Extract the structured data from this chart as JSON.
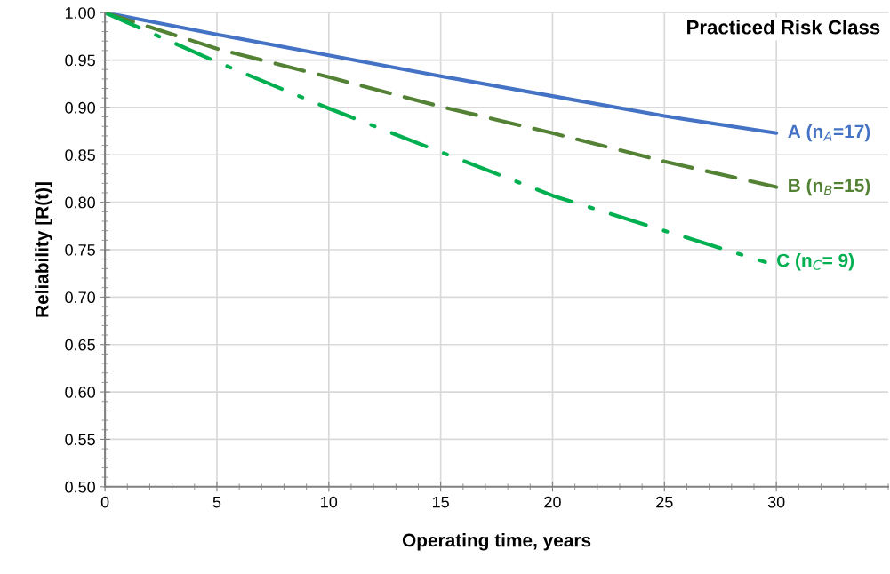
{
  "chart_data": {
    "type": "line",
    "xlabel": "Operating time, years",
    "ylabel": "Reliability [R(t)]",
    "annotations": [
      "Practiced Risk Class"
    ],
    "xlim": [
      0,
      35
    ],
    "xticks": [
      0,
      5,
      10,
      15,
      20,
      25,
      30
    ],
    "ylim": [
      0.5,
      1.0
    ],
    "yticks": [
      {
        "value": 0.5,
        "label": "0.50"
      },
      {
        "value": 0.55,
        "label": "0.55"
      },
      {
        "value": 0.6,
        "label": "0.60"
      },
      {
        "value": 0.65,
        "label": "0.65"
      },
      {
        "value": 0.7,
        "label": "0.70"
      },
      {
        "value": 0.75,
        "label": "0.75"
      },
      {
        "value": 0.8,
        "label": "0.80"
      },
      {
        "value": 0.85,
        "label": "0.85"
      },
      {
        "value": 0.9,
        "label": "0.90"
      },
      {
        "value": 0.95,
        "label": "0.95"
      },
      {
        "value": 1.0,
        "label": "1.00"
      }
    ],
    "grid": true,
    "legend": false,
    "series": [
      {
        "name": "A (n$_{A}$=17)",
        "color": "#4472c4",
        "line_style": "solid",
        "x": [
          0,
          5,
          10,
          15,
          20,
          25,
          30
        ],
        "values": [
          1.0,
          0.977,
          0.955,
          0.933,
          0.912,
          0.891,
          0.873
        ]
      },
      {
        "name": "B (n$_{B}$=15)",
        "color": "#548235",
        "line_style": "dashed",
        "x": [
          0,
          5,
          10,
          15,
          20,
          25,
          30
        ],
        "values": [
          1.0,
          0.962,
          0.932,
          0.901,
          0.873,
          0.843,
          0.816
        ]
      },
      {
        "name": "C (n$_{C}$= 9)",
        "color": "#00b050",
        "line_style": "dashdot",
        "x": [
          0,
          5,
          10,
          15,
          20,
          25,
          29.5
        ],
        "values": [
          1.0,
          0.948,
          0.899,
          0.853,
          0.807,
          0.77,
          0.737
        ]
      }
    ]
  }
}
